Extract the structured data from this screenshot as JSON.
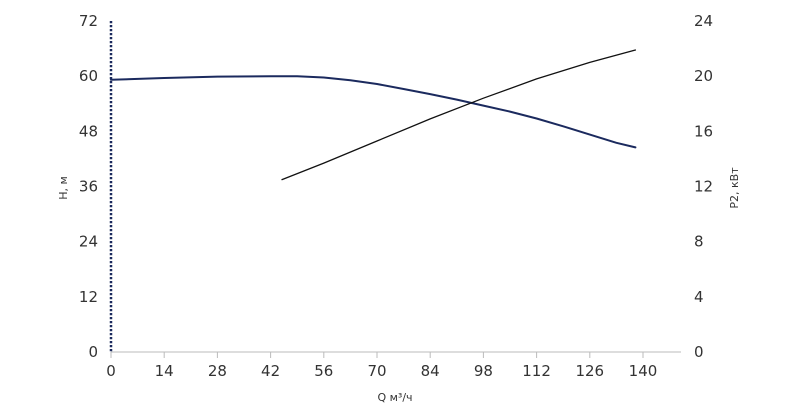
{
  "chart_data": {
    "type": "line",
    "xlabel": "Q м³/ч",
    "ylabel_left": "H, м",
    "ylabel_right": "P2, кВт",
    "xlim": [
      0,
      150
    ],
    "ylim_left": [
      0,
      72
    ],
    "ylim_right": [
      0,
      24
    ],
    "xticks": [
      0,
      14,
      28,
      42,
      56,
      70,
      84,
      98,
      112,
      126,
      140
    ],
    "yticks_left": [
      0,
      12,
      24,
      36,
      48,
      60,
      72
    ],
    "yticks_right": [
      0,
      4,
      8,
      12,
      16,
      20,
      24
    ],
    "grid": false,
    "series": [
      {
        "axis": "left",
        "color": "#1b2a5e",
        "x": [
          0,
          14,
          28,
          42,
          49,
          56,
          63,
          70,
          77,
          84,
          91,
          98,
          105,
          112,
          119,
          126,
          133,
          138
        ],
        "y": [
          59.2,
          59.6,
          59.9,
          60.0,
          60.0,
          59.7,
          59.1,
          58.3,
          57.2,
          56.1,
          54.9,
          53.6,
          52.3,
          50.8,
          49.1,
          47.3,
          45.5,
          44.5
        ]
      },
      {
        "axis": "right",
        "color": "#111111",
        "x": [
          45,
          56,
          70,
          84,
          98,
          112,
          126,
          138
        ],
        "y": [
          12.5,
          13.7,
          15.3,
          16.9,
          18.4,
          19.8,
          21.0,
          21.9
        ]
      }
    ]
  }
}
